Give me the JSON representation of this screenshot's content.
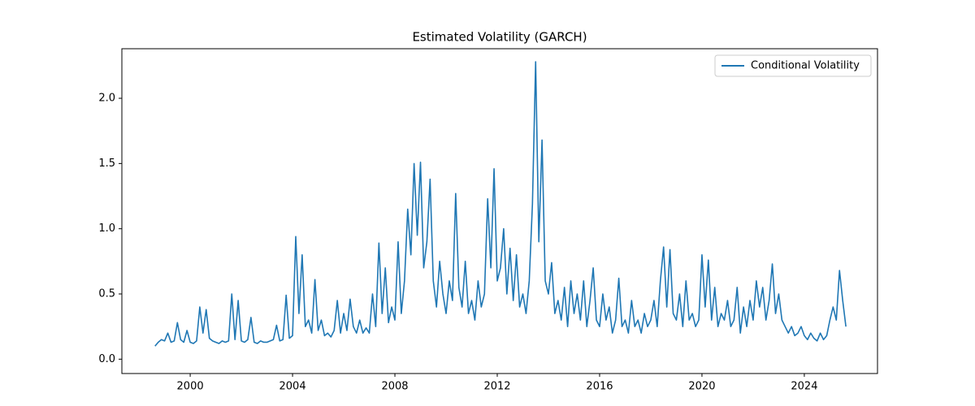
{
  "chart_data": {
    "type": "line",
    "title": "Estimated Volatility (GARCH)",
    "x": [
      1998.625,
      1998.75,
      1998.875,
      1999,
      1999.125,
      1999.25,
      1999.375,
      1999.5,
      1999.625,
      1999.75,
      1999.875,
      2000,
      2000.125,
      2000.25,
      2000.375,
      2000.5,
      2000.625,
      2000.75,
      2000.875,
      2001,
      2001.125,
      2001.25,
      2001.375,
      2001.5,
      2001.625,
      2001.75,
      2001.875,
      2002,
      2002.125,
      2002.25,
      2002.375,
      2002.5,
      2002.625,
      2002.75,
      2002.875,
      2003,
      2003.125,
      2003.25,
      2003.375,
      2003.5,
      2003.625,
      2003.75,
      2003.875,
      2004,
      2004.125,
      2004.25,
      2004.375,
      2004.5,
      2004.625,
      2004.75,
      2004.875,
      2005,
      2005.125,
      2005.25,
      2005.375,
      2005.5,
      2005.625,
      2005.75,
      2005.875,
      2006,
      2006.125,
      2006.25,
      2006.375,
      2006.5,
      2006.625,
      2006.75,
      2006.875,
      2007,
      2007.125,
      2007.25,
      2007.375,
      2007.5,
      2007.625,
      2007.75,
      2007.875,
      2008,
      2008.125,
      2008.25,
      2008.375,
      2008.5,
      2008.625,
      2008.75,
      2008.875,
      2009,
      2009.125,
      2009.25,
      2009.375,
      2009.5,
      2009.625,
      2009.75,
      2009.875,
      2010,
      2010.125,
      2010.25,
      2010.375,
      2010.5,
      2010.625,
      2010.75,
      2010.875,
      2011,
      2011.125,
      2011.25,
      2011.375,
      2011.5,
      2011.625,
      2011.75,
      2011.875,
      2012,
      2012.125,
      2012.25,
      2012.375,
      2012.5,
      2012.625,
      2012.75,
      2012.875,
      2013,
      2013.125,
      2013.25,
      2013.375,
      2013.5,
      2013.625,
      2013.75,
      2013.875,
      2014,
      2014.125,
      2014.25,
      2014.375,
      2014.5,
      2014.625,
      2014.75,
      2014.875,
      2015,
      2015.125,
      2015.25,
      2015.375,
      2015.5,
      2015.625,
      2015.75,
      2015.875,
      2016,
      2016.125,
      2016.25,
      2016.375,
      2016.5,
      2016.625,
      2016.75,
      2016.875,
      2017,
      2017.125,
      2017.25,
      2017.375,
      2017.5,
      2017.625,
      2017.75,
      2017.875,
      2018,
      2018.125,
      2018.25,
      2018.375,
      2018.5,
      2018.625,
      2018.75,
      2018.875,
      2019,
      2019.125,
      2019.25,
      2019.375,
      2019.5,
      2019.625,
      2019.75,
      2019.875,
      2020,
      2020.125,
      2020.25,
      2020.375,
      2020.5,
      2020.625,
      2020.75,
      2020.875,
      2021,
      2021.125,
      2021.25,
      2021.375,
      2021.5,
      2021.625,
      2021.75,
      2021.875,
      2022,
      2022.125,
      2022.25,
      2022.375,
      2022.5,
      2022.625,
      2022.75,
      2022.875,
      2023,
      2023.125,
      2023.25,
      2023.375,
      2023.5,
      2023.625,
      2023.75,
      2023.875,
      2024,
      2024.125,
      2024.25,
      2024.375,
      2024.5,
      2024.625,
      2024.75,
      2024.875,
      2025,
      2025.125,
      2025.25,
      2025.375,
      2025.5,
      2025.625
    ],
    "series": [
      {
        "name": "Conditional Volatility",
        "color": "#1f77b4",
        "values": [
          0.1,
          0.13,
          0.15,
          0.14,
          0.2,
          0.13,
          0.14,
          0.28,
          0.15,
          0.13,
          0.22,
          0.13,
          0.12,
          0.14,
          0.4,
          0.2,
          0.38,
          0.16,
          0.14,
          0.13,
          0.12,
          0.14,
          0.13,
          0.14,
          0.5,
          0.15,
          0.45,
          0.14,
          0.13,
          0.15,
          0.32,
          0.13,
          0.12,
          0.14,
          0.13,
          0.13,
          0.14,
          0.15,
          0.26,
          0.14,
          0.15,
          0.49,
          0.16,
          0.18,
          0.94,
          0.35,
          0.8,
          0.25,
          0.3,
          0.2,
          0.61,
          0.22,
          0.3,
          0.18,
          0.2,
          0.17,
          0.22,
          0.45,
          0.2,
          0.35,
          0.22,
          0.46,
          0.25,
          0.2,
          0.3,
          0.2,
          0.24,
          0.2,
          0.5,
          0.25,
          0.89,
          0.35,
          0.7,
          0.28,
          0.4,
          0.3,
          0.9,
          0.35,
          0.6,
          1.15,
          0.8,
          1.5,
          0.95,
          1.51,
          0.7,
          0.9,
          1.38,
          0.6,
          0.4,
          0.75,
          0.5,
          0.35,
          0.6,
          0.45,
          1.27,
          0.55,
          0.4,
          0.75,
          0.35,
          0.45,
          0.3,
          0.6,
          0.4,
          0.5,
          1.23,
          0.7,
          1.46,
          0.6,
          0.7,
          1.0,
          0.5,
          0.85,
          0.45,
          0.8,
          0.4,
          0.5,
          0.35,
          0.6,
          1.19,
          2.28,
          0.9,
          1.68,
          0.6,
          0.5,
          0.74,
          0.35,
          0.45,
          0.3,
          0.55,
          0.25,
          0.6,
          0.35,
          0.5,
          0.3,
          0.6,
          0.25,
          0.45,
          0.7,
          0.3,
          0.25,
          0.5,
          0.3,
          0.4,
          0.2,
          0.3,
          0.62,
          0.25,
          0.3,
          0.2,
          0.45,
          0.25,
          0.3,
          0.2,
          0.35,
          0.25,
          0.3,
          0.45,
          0.25,
          0.6,
          0.86,
          0.4,
          0.84,
          0.35,
          0.3,
          0.5,
          0.25,
          0.6,
          0.3,
          0.35,
          0.25,
          0.3,
          0.8,
          0.4,
          0.76,
          0.3,
          0.55,
          0.25,
          0.35,
          0.3,
          0.45,
          0.25,
          0.3,
          0.55,
          0.2,
          0.4,
          0.25,
          0.45,
          0.3,
          0.6,
          0.4,
          0.55,
          0.3,
          0.45,
          0.73,
          0.35,
          0.5,
          0.3,
          0.25,
          0.2,
          0.25,
          0.18,
          0.2,
          0.25,
          0.18,
          0.15,
          0.2,
          0.16,
          0.14,
          0.2,
          0.15,
          0.18,
          0.3,
          0.4,
          0.3,
          0.68,
          0.45,
          0.25
        ]
      }
    ],
    "xlim": [
      1997.33,
      2026.86
    ],
    "xticks": [
      2000,
      2004,
      2008,
      2012,
      2016,
      2020,
      2024
    ],
    "ylim": [
      -0.11,
      2.38
    ],
    "yticks": [
      {
        "value": 0,
        "label": "0.0"
      },
      0.5,
      {
        "value": 1,
        "label": "1.0"
      },
      1.5,
      {
        "value": 2,
        "label": "2.0"
      }
    ],
    "grid": false,
    "legend": "upper right"
  }
}
